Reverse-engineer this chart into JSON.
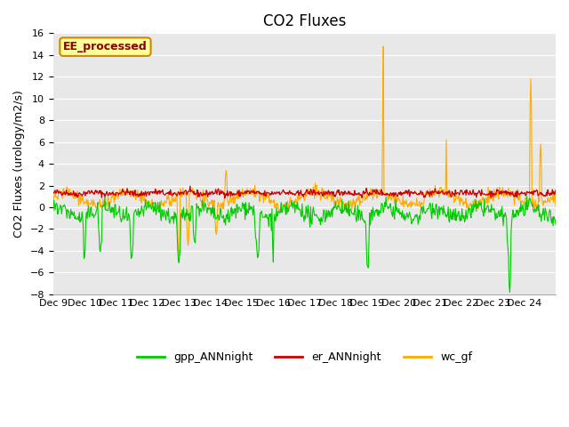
{
  "title": "CO2 Fluxes",
  "ylabel": "CO2 Fluxes (urology/m2/s)",
  "ylim": [
    -8,
    16
  ],
  "yticks": [
    -8,
    -6,
    -4,
    -2,
    0,
    2,
    4,
    6,
    8,
    10,
    12,
    14,
    16
  ],
  "xlabel_dates": [
    "Dec 9",
    "Dec 10",
    "Dec 11",
    "Dec 12",
    "Dec 13",
    "Dec 14",
    "Dec 15",
    "Dec 16",
    "Dec 17",
    "Dec 18",
    "Dec 19",
    "Dec 20",
    "Dec 21",
    "Dec 22",
    "Dec 23",
    "Dec 24"
  ],
  "xtick_positions": [
    0,
    1,
    2,
    3,
    4,
    5,
    6,
    7,
    8,
    9,
    10,
    11,
    12,
    13,
    14,
    15
  ],
  "bg_color": "#e8e8e8",
  "grid_color": "#ffffff",
  "series_colors": {
    "gpp": "#00cc00",
    "er": "#cc0000",
    "wc": "#ffaa00"
  },
  "legend_entries": [
    "gpp_ANNnight",
    "er_ANNnight",
    "wc_gf"
  ],
  "annotation_text": "EE_processed",
  "annotation_bg": "#ffff99",
  "annotation_border": "#cc8800",
  "title_fontsize": 12,
  "label_fontsize": 9,
  "tick_fontsize": 8,
  "n_days": 16,
  "pts_per_day": 48
}
